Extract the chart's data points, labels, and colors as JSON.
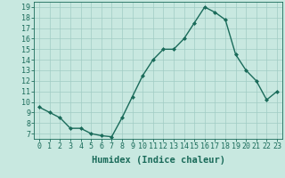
{
  "x": [
    0,
    1,
    2,
    3,
    4,
    5,
    6,
    7,
    8,
    9,
    10,
    11,
    12,
    13,
    14,
    15,
    16,
    17,
    18,
    19,
    20,
    21,
    22,
    23
  ],
  "y": [
    9.5,
    9.0,
    8.5,
    7.5,
    7.5,
    7.0,
    6.8,
    6.7,
    8.5,
    10.5,
    12.5,
    14.0,
    15.0,
    15.0,
    16.0,
    17.5,
    19.0,
    18.5,
    17.8,
    14.5,
    13.0,
    12.0,
    10.2,
    11.0
  ],
  "line_color": "#1a6b5a",
  "marker": "D",
  "marker_size": 2,
  "background_color": "#c8e8e0",
  "grid_color": "#a0ccc4",
  "xlabel": "Humidex (Indice chaleur)",
  "xlim": [
    -0.5,
    23.5
  ],
  "ylim": [
    6.5,
    19.5
  ],
  "yticks": [
    7,
    8,
    9,
    10,
    11,
    12,
    13,
    14,
    15,
    16,
    17,
    18,
    19
  ],
  "xticks": [
    0,
    1,
    2,
    3,
    4,
    5,
    6,
    7,
    8,
    9,
    10,
    11,
    12,
    13,
    14,
    15,
    16,
    17,
    18,
    19,
    20,
    21,
    22,
    23
  ],
  "tick_color": "#1a6b5a",
  "label_fontsize": 6.0,
  "axis_fontsize": 7.5,
  "linewidth": 1.0
}
